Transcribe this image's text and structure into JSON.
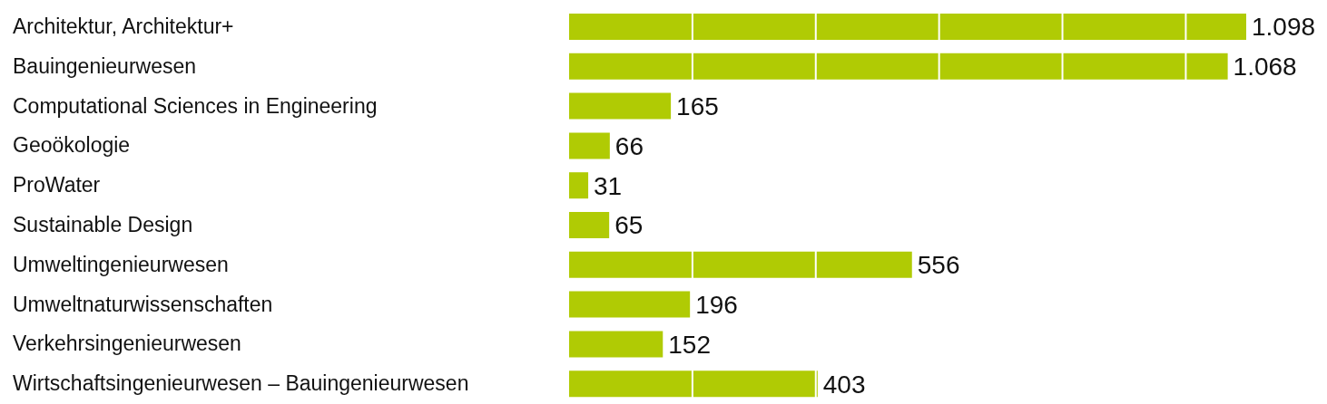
{
  "chart_data": {
    "type": "bar",
    "orientation": "horizontal",
    "categories": [
      "Architektur, Architektur+",
      "Bauingenieurwesen",
      "Computational Sciences in Engineering",
      "Geoökologie",
      "ProWater",
      "Sustainable Design",
      "Umweltingenieurwesen",
      "Umweltnaturwissenschaften",
      "Verkehrsingenieurwesen",
      "Wirtschaftsingenieurwesen – Bauingenieurwesen"
    ],
    "values": [
      1098,
      1068,
      165,
      66,
      31,
      65,
      556,
      196,
      152,
      403
    ],
    "value_labels": [
      "1.098",
      "1.068",
      "165",
      "66",
      "31",
      "65",
      "556",
      "196",
      "152",
      "403"
    ],
    "color": "#b0cb04",
    "xlim": [
      0,
      1098
    ],
    "xticks": [
      {
        "value": 200,
        "label": null
      },
      {
        "value": 400,
        "label": null
      },
      {
        "value": 600,
        "label": null
      },
      {
        "value": 800,
        "label": null
      },
      {
        "value": 1000,
        "label": null
      }
    ],
    "grid": "x",
    "tick_labels": "y",
    "legend": false
  }
}
